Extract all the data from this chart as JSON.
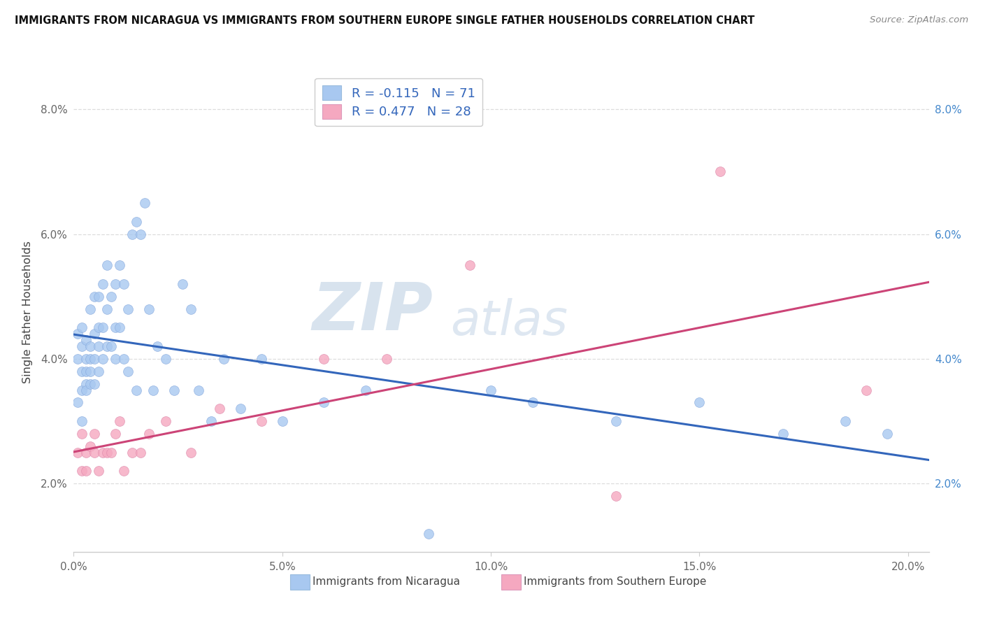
{
  "title": "IMMIGRANTS FROM NICARAGUA VS IMMIGRANTS FROM SOUTHERN EUROPE SINGLE FATHER HOUSEHOLDS CORRELATION CHART",
  "source": "Source: ZipAtlas.com",
  "xlabel_nicaragua": "Immigrants from Nicaragua",
  "xlabel_southern": "Immigrants from Southern Europe",
  "ylabel": "Single Father Households",
  "color_nicaragua": "#a8c8f0",
  "color_southern": "#f5a8c0",
  "line_color_nicaragua": "#3366bb",
  "line_color_southern": "#cc4477",
  "R_nicaragua": -0.115,
  "N_nicaragua": 71,
  "R_southern": 0.477,
  "N_southern": 28,
  "xlim": [
    0.0,
    0.205
  ],
  "ylim": [
    0.009,
    0.086
  ],
  "ytick_vals": [
    0.02,
    0.04,
    0.06,
    0.08
  ],
  "xtick_vals": [
    0.0,
    0.05,
    0.1,
    0.15,
    0.2
  ],
  "grid_color": "#dddddd",
  "tick_label_color": "#666666",
  "right_tick_color": "#4488cc",
  "nicaragua_x": [
    0.001,
    0.001,
    0.001,
    0.002,
    0.002,
    0.002,
    0.002,
    0.002,
    0.003,
    0.003,
    0.003,
    0.003,
    0.003,
    0.004,
    0.004,
    0.004,
    0.004,
    0.004,
    0.005,
    0.005,
    0.005,
    0.005,
    0.006,
    0.006,
    0.006,
    0.006,
    0.007,
    0.007,
    0.007,
    0.008,
    0.008,
    0.008,
    0.009,
    0.009,
    0.01,
    0.01,
    0.01,
    0.011,
    0.011,
    0.012,
    0.012,
    0.013,
    0.013,
    0.014,
    0.015,
    0.015,
    0.016,
    0.017,
    0.018,
    0.019,
    0.02,
    0.022,
    0.024,
    0.026,
    0.028,
    0.03,
    0.033,
    0.036,
    0.04,
    0.045,
    0.05,
    0.06,
    0.07,
    0.085,
    0.1,
    0.11,
    0.13,
    0.15,
    0.17,
    0.185,
    0.195
  ],
  "nicaragua_y": [
    0.033,
    0.04,
    0.044,
    0.035,
    0.038,
    0.042,
    0.045,
    0.03,
    0.036,
    0.038,
    0.04,
    0.043,
    0.035,
    0.036,
    0.038,
    0.042,
    0.048,
    0.04,
    0.036,
    0.04,
    0.044,
    0.05,
    0.038,
    0.042,
    0.045,
    0.05,
    0.04,
    0.045,
    0.052,
    0.042,
    0.048,
    0.055,
    0.042,
    0.05,
    0.04,
    0.045,
    0.052,
    0.045,
    0.055,
    0.04,
    0.052,
    0.038,
    0.048,
    0.06,
    0.035,
    0.062,
    0.06,
    0.065,
    0.048,
    0.035,
    0.042,
    0.04,
    0.035,
    0.052,
    0.048,
    0.035,
    0.03,
    0.04,
    0.032,
    0.04,
    0.03,
    0.033,
    0.035,
    0.012,
    0.035,
    0.033,
    0.03,
    0.033,
    0.028,
    0.03,
    0.028
  ],
  "southern_x": [
    0.001,
    0.002,
    0.002,
    0.003,
    0.003,
    0.004,
    0.005,
    0.005,
    0.006,
    0.007,
    0.008,
    0.009,
    0.01,
    0.011,
    0.012,
    0.014,
    0.016,
    0.018,
    0.022,
    0.028,
    0.035,
    0.045,
    0.06,
    0.075,
    0.095,
    0.13,
    0.155,
    0.19
  ],
  "southern_y": [
    0.025,
    0.028,
    0.022,
    0.025,
    0.022,
    0.026,
    0.025,
    0.028,
    0.022,
    0.025,
    0.025,
    0.025,
    0.028,
    0.03,
    0.022,
    0.025,
    0.025,
    0.028,
    0.03,
    0.025,
    0.032,
    0.03,
    0.04,
    0.04,
    0.055,
    0.018,
    0.07,
    0.035
  ]
}
